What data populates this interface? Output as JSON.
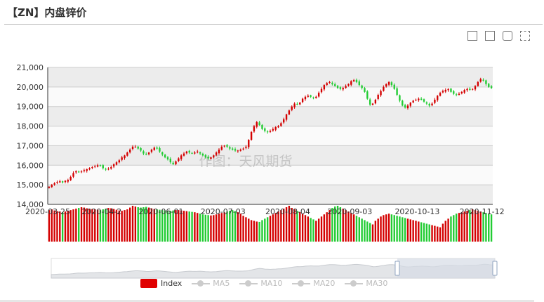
{
  "header": {
    "title": "【ZN】内盘锌价"
  },
  "toolbox": [
    "zoom-icon",
    "zoom-reset-icon",
    "restore-icon",
    "save-image-icon"
  ],
  "watermark": "作图：天风期货",
  "colors": {
    "up": "#d40000",
    "down": "#22cc33",
    "grid_band": "#ececec",
    "slider_fill": "#d6dce6",
    "slider_handle": "#8fa3bf"
  },
  "legend": [
    {
      "label": "Index",
      "active": true
    },
    {
      "label": "MA5",
      "active": false
    },
    {
      "label": "MA10",
      "active": false
    },
    {
      "label": "MA20",
      "active": false
    },
    {
      "label": "MA30",
      "active": false
    }
  ],
  "chart_data": {
    "type": "candlestick",
    "ylim": [
      14000,
      21000
    ],
    "yticks": [
      14000,
      15000,
      16000,
      17000,
      18000,
      19000,
      20000,
      21000
    ],
    "x_labels": [
      "2020-03-25",
      "2020-04-2",
      "2020-06-01",
      "2020-07-03",
      "2020-08-04",
      "2020-09-03",
      "2020-10-13",
      "2020-11-12"
    ],
    "x_label_positions": [
      0,
      20,
      42,
      65,
      89,
      112,
      137,
      161
    ],
    "close_series": [
      14900,
      15000,
      15080,
      15150,
      15180,
      15120,
      15200,
      15250,
      15400,
      15600,
      15700,
      15650,
      15680,
      15750,
      15800,
      15850,
      15900,
      15950,
      16000,
      15980,
      15850,
      15800,
      15820,
      15900,
      16050,
      16150,
      16250,
      16400,
      16500,
      16650,
      16800,
      16950,
      16950,
      16850,
      16750,
      16600,
      16550,
      16650,
      16800,
      16900,
      16850,
      16700,
      16550,
      16400,
      16300,
      16150,
      16050,
      16200,
      16350,
      16500,
      16600,
      16700,
      16650,
      16600,
      16650,
      16700,
      16600,
      16500,
      16400,
      16350,
      16400,
      16500,
      16650,
      16800,
      16950,
      17000,
      16950,
      16850,
      16800,
      16750,
      16750,
      16800,
      16850,
      16950,
      17300,
      17700,
      18000,
      18200,
      18050,
      17850,
      17750,
      17700,
      17750,
      17850,
      17950,
      18000,
      18150,
      18350,
      18600,
      18800,
      19000,
      19150,
      19100,
      19200,
      19400,
      19500,
      19550,
      19500,
      19450,
      19500,
      19700,
      19900,
      20100,
      20200,
      20250,
      20150,
      20050,
      19950,
      19900,
      19950,
      20050,
      20150,
      20300,
      20350,
      20250,
      20100,
      19950,
      19750,
      19400,
      19100,
      19150,
      19350,
      19600,
      19800,
      20000,
      20150,
      20250,
      20100,
      19900,
      19600,
      19300,
      19050,
      18950,
      19050,
      19200,
      19300,
      19350,
      19400,
      19350,
      19250,
      19150,
      19050,
      19150,
      19350,
      19550,
      19700,
      19800,
      19850,
      19900,
      19750,
      19650,
      19600,
      19650,
      19750,
      19850,
      19900,
      19850,
      19900,
      20050,
      20250,
      20400,
      20350,
      20150,
      20000,
      19950
    ],
    "volume_series": [
      88,
      90,
      87,
      85,
      84,
      82,
      84,
      86,
      88,
      90,
      92,
      94,
      96,
      95,
      93,
      92,
      91,
      90,
      89,
      88,
      90,
      92,
      94,
      93,
      91,
      89,
      87,
      86,
      88,
      90,
      95,
      100,
      98,
      96,
      95,
      96,
      97,
      95,
      93,
      91,
      90,
      89,
      88,
      87,
      86,
      86,
      87,
      88,
      88,
      87,
      86,
      85,
      84,
      83,
      82,
      80,
      78,
      76,
      75,
      74,
      73,
      74,
      76,
      78,
      80,
      82,
      84,
      86,
      88,
      85,
      82,
      78,
      72,
      68,
      64,
      60,
      58,
      56,
      55,
      60,
      64,
      68,
      72,
      76,
      80,
      84,
      88,
      92,
      96,
      100,
      94,
      90,
      86,
      82,
      78,
      74,
      70,
      66,
      62,
      58,
      64,
      70,
      76,
      82,
      88,
      94,
      98,
      100,
      96,
      92,
      88,
      84,
      80,
      76,
      72,
      68,
      64,
      60,
      56,
      52,
      48,
      58,
      64,
      70,
      74,
      76,
      78,
      76,
      74,
      72,
      70,
      68,
      66,
      64,
      62,
      60,
      58,
      56,
      54,
      52,
      50,
      48,
      46,
      44,
      42,
      40,
      50,
      58,
      64,
      70,
      74,
      78,
      80,
      82,
      84,
      86,
      88,
      90,
      88,
      86,
      84,
      82,
      80,
      78,
      76
    ],
    "dataZoom": {
      "start_fraction": 0.78,
      "end_fraction": 1.0
    }
  }
}
